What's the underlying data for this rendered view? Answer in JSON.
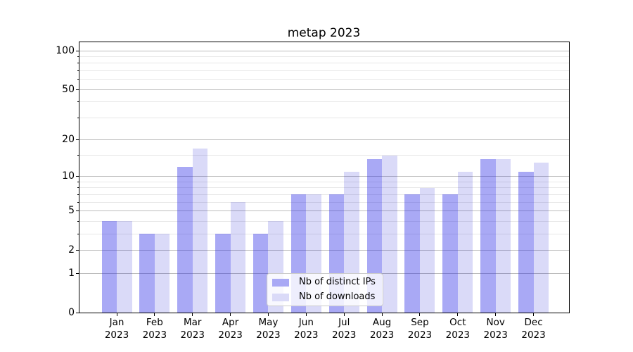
{
  "chart_data": {
    "type": "bar",
    "title": "metap 2023",
    "categories": [
      "Jan 2023",
      "Feb 2023",
      "Mar 2023",
      "Apr 2023",
      "May 2023",
      "Jun 2023",
      "Jul 2023",
      "Aug 2023",
      "Sep 2023",
      "Oct 2023",
      "Nov 2023",
      "Dec 2023"
    ],
    "series": [
      {
        "name": "Nb of distinct IPs",
        "values": [
          4,
          3,
          12,
          3,
          3,
          7,
          7,
          14,
          7,
          7,
          14,
          11
        ],
        "fill": "rgba(40,40,230,0.40)",
        "legend_color": "#a9a9f5"
      },
      {
        "name": "Nb of downloads",
        "values": [
          4,
          3,
          17,
          6,
          4,
          7,
          11,
          15,
          8,
          11,
          14,
          13
        ],
        "fill": "rgba(10,10,210,0.15)",
        "legend_color": "#dadaf8"
      }
    ],
    "xlabel": "",
    "ylabel": "",
    "yscale": "log1p",
    "ylim": [
      0,
      116
    ],
    "yticks": [
      0,
      1,
      2,
      5,
      10,
      20,
      50,
      100
    ],
    "minor_yticks": [
      3,
      4,
      6,
      7,
      8,
      9,
      15,
      30,
      40,
      60,
      70,
      80,
      90
    ],
    "grid": true,
    "legend_position": "lower center",
    "spine_color": "#000000",
    "major_grid_color": "#bdbdbd",
    "minor_grid_color": "#e7e7e7"
  }
}
